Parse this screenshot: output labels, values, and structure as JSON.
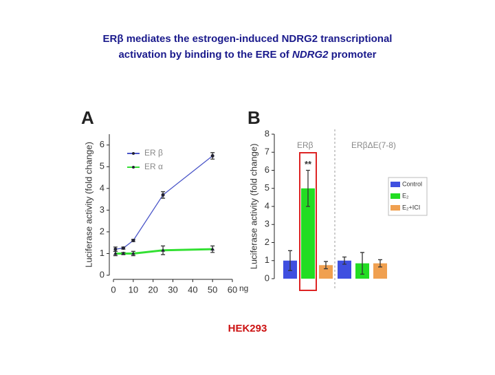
{
  "title_lines": [
    [
      "ERβ mediates the estrogen-induced NDRG2 transcriptional"
    ],
    [
      "activation by binding to the ERE of ",
      "NDRG2",
      " promoter"
    ]
  ],
  "footer": "HEK293",
  "chart_data": [
    {
      "type": "line",
      "label": "A",
      "ylabel": "Luciferase activity (fold change)",
      "xlabel": "ng",
      "x": [
        1,
        5,
        10,
        25,
        50
      ],
      "series": [
        {
          "name": "ER β",
          "color": "#4a55c8",
          "marker": "circle",
          "values": [
            1.2,
            1.25,
            1.6,
            3.7,
            5.5
          ],
          "errors": [
            0.1,
            0.05,
            0.05,
            0.15,
            0.15
          ]
        },
        {
          "name": "ER α",
          "color": "#33e033",
          "marker": "triangle",
          "values": [
            1.0,
            1.0,
            1.0,
            1.15,
            1.2
          ],
          "errors": [
            0.1,
            0.05,
            0.1,
            0.2,
            0.15
          ]
        }
      ],
      "xlim": [
        0,
        60
      ],
      "xticks": [
        0,
        10,
        20,
        30,
        40,
        50,
        60
      ],
      "ylim": [
        0,
        6.5
      ],
      "yticks": [
        0,
        1,
        2,
        3,
        4,
        5,
        6
      ],
      "legend": "upper left"
    },
    {
      "type": "bar",
      "label": "B",
      "ylabel": "Luciferase activity (fold change)",
      "categories": [
        "ERβ",
        "ERβΔE(7-8)"
      ],
      "series": [
        {
          "name": "Control",
          "color": "#3f4fe0",
          "values": [
            1.0,
            1.0
          ],
          "errors": [
            0.55,
            0.2
          ]
        },
        {
          "name": "E₂",
          "color": "#22dd22",
          "values": [
            5.0,
            0.85
          ],
          "errors": [
            1.0,
            0.6
          ]
        },
        {
          "name": "E₂+ICI",
          "color": "#f0a050",
          "values": [
            0.75,
            0.85
          ],
          "errors": [
            0.2,
            0.2
          ]
        }
      ],
      "annotation": "**",
      "ylim": [
        0,
        8
      ],
      "yticks": [
        0,
        1,
        2,
        3,
        4,
        5,
        6,
        7,
        8
      ],
      "legend": "right"
    }
  ]
}
